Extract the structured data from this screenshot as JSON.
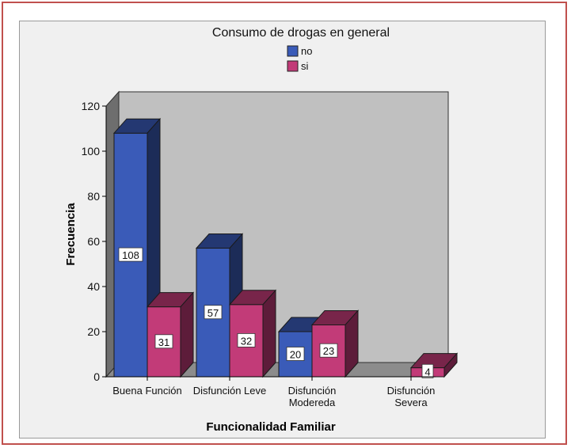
{
  "legend": {
    "title": "Consumo de drogas en general",
    "items": [
      {
        "label": "no",
        "color": "#3a5bb8"
      },
      {
        "label": "si",
        "color": "#c23b78"
      }
    ]
  },
  "chart_data": {
    "type": "bar",
    "title": "",
    "xlabel": "Funcionalidad Familiar",
    "ylabel": "Frecuencia",
    "ylim": [
      0,
      120
    ],
    "yticks": [
      0,
      20,
      40,
      60,
      80,
      100,
      120
    ],
    "categories": [
      [
        "Buena Función"
      ],
      [
        "Disfunción Leve"
      ],
      [
        "Disfunción",
        "Modereda"
      ],
      [
        "Disfunción",
        "Severa"
      ]
    ],
    "series": [
      {
        "name": "no",
        "values": [
          108,
          57,
          20,
          null
        ],
        "color": "#3a5bb8"
      },
      {
        "name": "si",
        "values": [
          31,
          32,
          23,
          4
        ],
        "color": "#c23b78"
      }
    ],
    "data_labels": true,
    "style": "3d-clustered",
    "grid": false,
    "legend_position": "top-center"
  }
}
